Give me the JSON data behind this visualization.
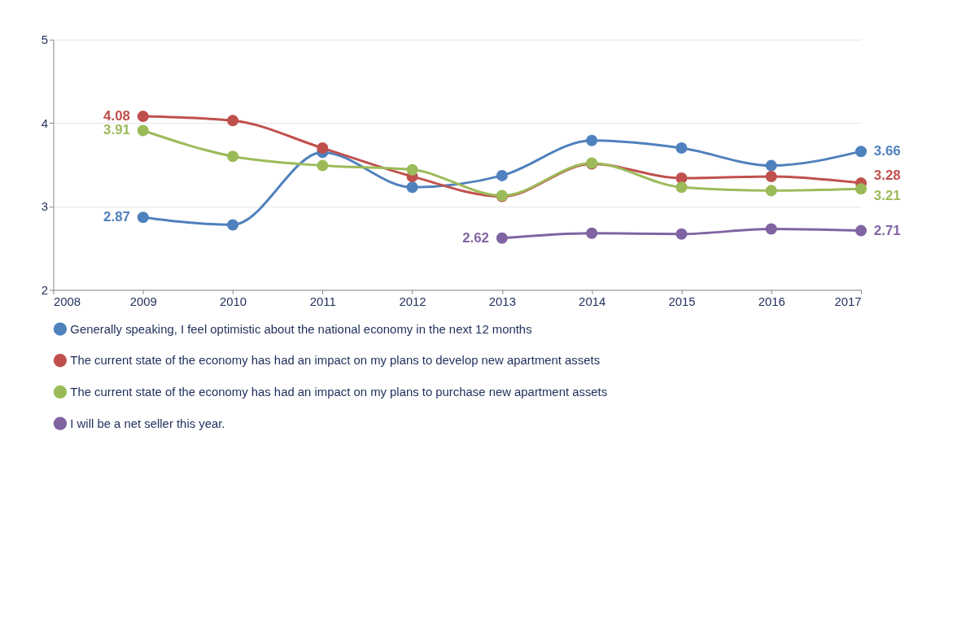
{
  "chart_data": {
    "type": "line",
    "x": [
      2009,
      2010,
      2011,
      2012,
      2013,
      2014,
      2015,
      2016,
      2017
    ],
    "xlim": [
      2008,
      2017
    ],
    "xticks": [
      2008,
      2009,
      2010,
      2011,
      2012,
      2013,
      2014,
      2015,
      2016,
      2017
    ],
    "ylim": [
      2,
      5
    ],
    "yticks": [
      2,
      3,
      4,
      5
    ],
    "grid": "y",
    "legend": "bottom",
    "marker": "circle",
    "line_style": "solid",
    "series": [
      {
        "name": "Generally speaking, I feel optimistic about the national economy in the next 12 months",
        "color": "#4f81bd",
        "values": [
          2.87,
          2.78,
          3.65,
          3.23,
          3.37,
          3.79,
          3.7,
          3.49,
          3.66
        ],
        "value_labels": [
          "2.87",
          null,
          null,
          null,
          null,
          null,
          null,
          null,
          "3.66"
        ]
      },
      {
        "name": "The current state of the economy has had an impact on my plans to develop new apartment assets",
        "color": "#c0504d",
        "values": [
          4.08,
          4.03,
          3.7,
          3.36,
          3.12,
          3.51,
          3.34,
          3.36,
          3.28
        ],
        "value_labels": [
          "4.08",
          null,
          null,
          null,
          null,
          null,
          null,
          null,
          "3.28"
        ]
      },
      {
        "name": "The current state of the economy has had an impact on my plans to purchase new apartment assets",
        "color": "#9bbb59",
        "values": [
          3.91,
          3.6,
          3.49,
          3.44,
          3.13,
          3.52,
          3.23,
          3.19,
          3.21
        ],
        "value_labels": [
          "3.91",
          null,
          null,
          null,
          null,
          null,
          null,
          null,
          "3.21"
        ]
      },
      {
        "name": "I will be a net seller this year.",
        "color": "#8064a2",
        "x": [
          2013,
          2014,
          2015,
          2016,
          2017
        ],
        "values": [
          2.62,
          2.68,
          2.67,
          2.73,
          2.71
        ],
        "value_labels": [
          "2.62",
          null,
          null,
          null,
          "2.71"
        ]
      }
    ]
  }
}
